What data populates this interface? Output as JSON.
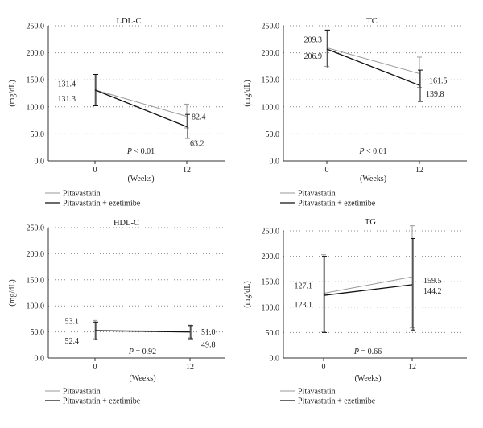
{
  "colors": {
    "pitavastatin": "#9a9a9a",
    "combination": "#111111",
    "grid": "#888888",
    "axis": "#333333"
  },
  "chart_data": [
    {
      "type": "line",
      "title": "LDL-C",
      "ylabel": "(mg/dL)",
      "xlabel": "(Weeks)",
      "x": [
        "0",
        "12"
      ],
      "ylim": [
        0,
        250
      ],
      "yticks": [
        "0.0",
        "50.0",
        "100.0",
        "150.0",
        "200.0",
        "250.0"
      ],
      "grid": true,
      "pvalue": {
        "italic": "P",
        "rest": " < 0.01"
      },
      "series": [
        {
          "name": "Pitavastatin",
          "values": [
            131.4,
            82.4
          ],
          "err": [
            [
              102,
              160
            ],
            [
              61,
              105
            ]
          ],
          "labels": [
            "131.4",
            "82.4"
          ]
        },
        {
          "name": "Pitavastatin + ezetimibe",
          "values": [
            131.3,
            63.2
          ],
          "err": [
            [
              102,
              160
            ],
            [
              42,
              86
            ]
          ],
          "labels": [
            "131.3",
            "63.2"
          ]
        }
      ],
      "legend": [
        "Pitavastatin",
        "Pitavastatin + ezetimibe"
      ]
    },
    {
      "type": "line",
      "title": "TC",
      "ylabel": "(mg/dL)",
      "xlabel": "(Weeks)",
      "x": [
        "0",
        "12"
      ],
      "ylim": [
        0,
        250
      ],
      "yticks": [
        "0.0",
        "50.0",
        "100.0",
        "150.0",
        "200.0",
        "250.0"
      ],
      "grid": true,
      "pvalue": {
        "italic": "P",
        "rest": " < 0.01"
      },
      "series": [
        {
          "name": "Pitavastatin",
          "values": [
            209.3,
            161.5
          ],
          "err": [
            [
              175,
              242
            ],
            [
              136,
              192
            ]
          ],
          "labels": [
            "209.3",
            "161.5"
          ]
        },
        {
          "name": "Pitavastatin + ezetimibe",
          "values": [
            206.9,
            139.8
          ],
          "err": [
            [
              172,
              242
            ],
            [
              110,
              168
            ]
          ],
          "labels": [
            "206.9",
            "139.8"
          ]
        }
      ],
      "legend": [
        "Pitavastatin",
        "Pitavastatin + ezetimibe"
      ]
    },
    {
      "type": "line",
      "title": "HDL-C",
      "ylabel": "(mg/dL)",
      "xlabel": "(Weeks)",
      "x": [
        "0",
        "12"
      ],
      "ylim": [
        0,
        250
      ],
      "yticks": [
        "0.0",
        "50.0",
        "100.0",
        "150.0",
        "200.0",
        "250.0"
      ],
      "grid": true,
      "pvalue": {
        "italic": "P",
        "rest": " = 0.92"
      },
      "series": [
        {
          "name": "Pitavastatin",
          "values": [
            53.1,
            51.0
          ],
          "err": [
            [
              37,
              72
            ],
            [
              39,
              63
            ]
          ],
          "labels": [
            "53.1",
            "51.0"
          ]
        },
        {
          "name": "Pitavastatin + ezetimibe",
          "values": [
            52.4,
            49.8
          ],
          "err": [
            [
              35,
              69
            ],
            [
              37,
              62
            ]
          ],
          "labels": [
            "52.4",
            "49.8"
          ]
        }
      ],
      "legend": [
        "Pitavastatin",
        "Pitavastatin + ezetimibe"
      ]
    },
    {
      "type": "line",
      "title": "TG",
      "ylabel": "(mg/dL)",
      "xlabel": "(Weeks)",
      "x": [
        "0",
        "12"
      ],
      "ylim": [
        0,
        250
      ],
      "yticks": [
        "0.0",
        "50.0",
        "100.0",
        "150.0",
        "200.0",
        "250.0"
      ],
      "grid": true,
      "pvalue": {
        "italic": "P",
        "rest": " = 0.66"
      },
      "series": [
        {
          "name": "Pitavastatin",
          "values": [
            127.1,
            159.5
          ],
          "err": [
            [
              52,
              203
            ],
            [
              59,
              260
            ]
          ],
          "labels": [
            "127.1",
            "159.5"
          ]
        },
        {
          "name": "Pitavastatin + ezetimibe",
          "values": [
            123.1,
            144.2
          ],
          "err": [
            [
              50,
              200
            ],
            [
              55,
              235
            ]
          ],
          "labels": [
            "123.1",
            "144.2"
          ]
        }
      ],
      "legend": [
        "Pitavastatin",
        "Pitavastatin + ezetimibe"
      ]
    }
  ]
}
